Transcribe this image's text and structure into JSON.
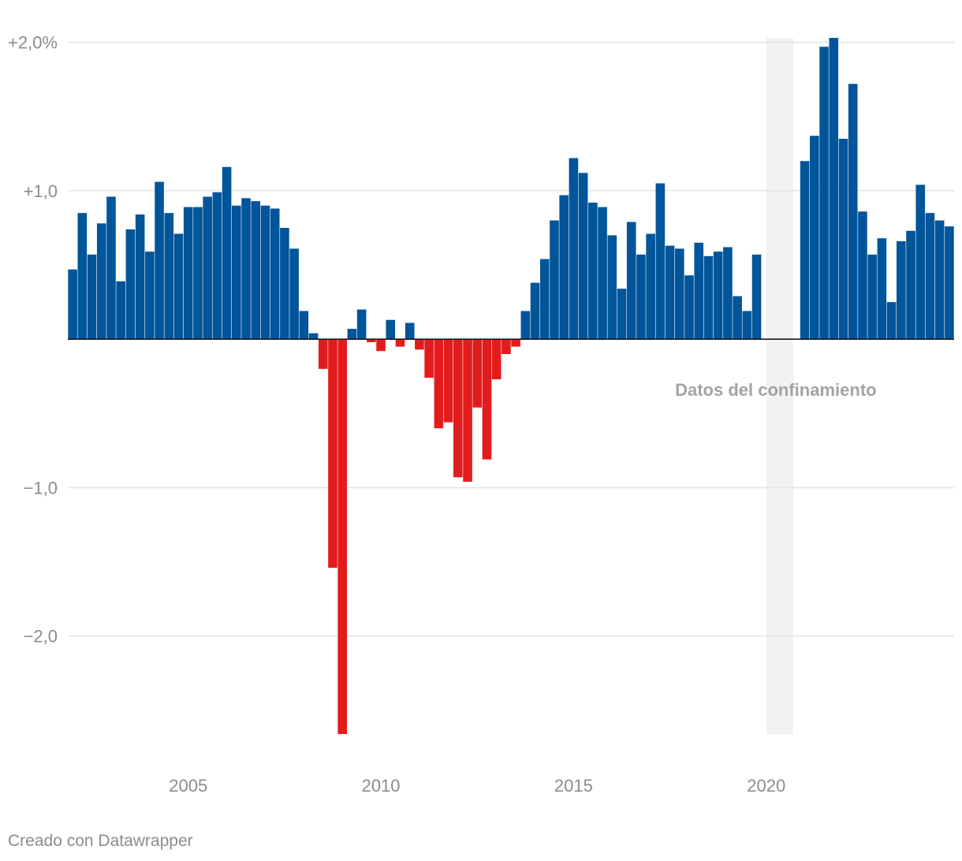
{
  "chart_data": {
    "type": "bar",
    "xlim": [
      2001.875,
      2024.875
    ],
    "ylim": [
      -2.66,
      2.03
    ],
    "grid": true,
    "x": [
      2002,
      2002.25,
      2002.5,
      2002.75,
      2003,
      2003.25,
      2003.5,
      2003.75,
      2004,
      2004.25,
      2004.5,
      2004.75,
      2005,
      2005.25,
      2005.5,
      2005.75,
      2006,
      2006.25,
      2006.5,
      2006.75,
      2007,
      2007.25,
      2007.5,
      2007.75,
      2008,
      2008.25,
      2008.5,
      2008.75,
      2009,
      2009.25,
      2009.5,
      2009.75,
      2010,
      2010.25,
      2010.5,
      2010.75,
      2011,
      2011.25,
      2011.5,
      2011.75,
      2012,
      2012.25,
      2012.5,
      2012.75,
      2013,
      2013.25,
      2013.5,
      2013.75,
      2014,
      2014.25,
      2014.5,
      2014.75,
      2015,
      2015.25,
      2015.5,
      2015.75,
      2016,
      2016.25,
      2016.5,
      2016.75,
      2017,
      2017.25,
      2017.5,
      2017.75,
      2018,
      2018.25,
      2018.5,
      2018.75,
      2019,
      2019.25,
      2019.5,
      2019.75,
      2020,
      2020.25,
      2020.5,
      2020.75,
      2021,
      2021.25,
      2021.5,
      2021.75,
      2022,
      2022.25,
      2022.5,
      2022.75,
      2023,
      2023.25,
      2023.5,
      2023.75,
      2024,
      2024.25,
      2024.5,
      2024.75
    ],
    "values": [
      0.47,
      0.85,
      0.57,
      0.78,
      0.96,
      0.39,
      0.74,
      0.84,
      0.59,
      1.06,
      0.85,
      0.71,
      0.89,
      0.89,
      0.96,
      0.99,
      1.16,
      0.9,
      0.95,
      0.93,
      0.9,
      0.88,
      0.75,
      0.61,
      0.19,
      0.04,
      -0.2,
      -1.54,
      -2.66,
      0.07,
      0.2,
      -0.02,
      -0.08,
      0.13,
      -0.05,
      0.11,
      -0.07,
      -0.26,
      -0.6,
      -0.56,
      -0.93,
      -0.96,
      -0.46,
      -0.81,
      -0.27,
      -0.1,
      -0.05,
      0.19,
      0.38,
      0.54,
      0.8,
      0.97,
      1.22,
      1.12,
      0.92,
      0.89,
      0.7,
      0.34,
      0.79,
      0.57,
      0.71,
      1.05,
      0.63,
      0.61,
      0.43,
      0.65,
      0.56,
      0.59,
      0.62,
      0.29,
      0.19,
      0.57,
      null,
      null,
      null,
      null,
      1.2,
      1.37,
      1.97,
      2.03,
      1.35,
      1.72,
      0.86,
      0.57,
      0.68,
      0.25,
      0.66,
      0.73,
      1.04,
      0.85,
      0.8,
      0.76
    ],
    "colors": {
      "positive": "#01559a",
      "negative": "#e31b1c",
      "zero_line": "#1a1a1a",
      "grid": "#e3e3e3",
      "shade": "#f2f2f2"
    },
    "y_ticks": [
      {
        "value": 2,
        "label": "+2,0%"
      },
      {
        "value": 1,
        "label": "+1,0"
      },
      {
        "value": -1,
        "label": "−1,0"
      },
      {
        "value": -2,
        "label": "−2,0"
      }
    ],
    "x_ticks": [
      {
        "value": 2005,
        "label": "2005"
      },
      {
        "value": 2010,
        "label": "2010"
      },
      {
        "value": 2015,
        "label": "2015"
      },
      {
        "value": 2020,
        "label": "2020"
      }
    ],
    "annotations": [
      {
        "type": "shaded-range",
        "from": 2020.0,
        "to": 2020.7,
        "label": "Datos del confinamiento"
      }
    ]
  },
  "footer": {
    "credit": "Creado con Datawrapper"
  }
}
